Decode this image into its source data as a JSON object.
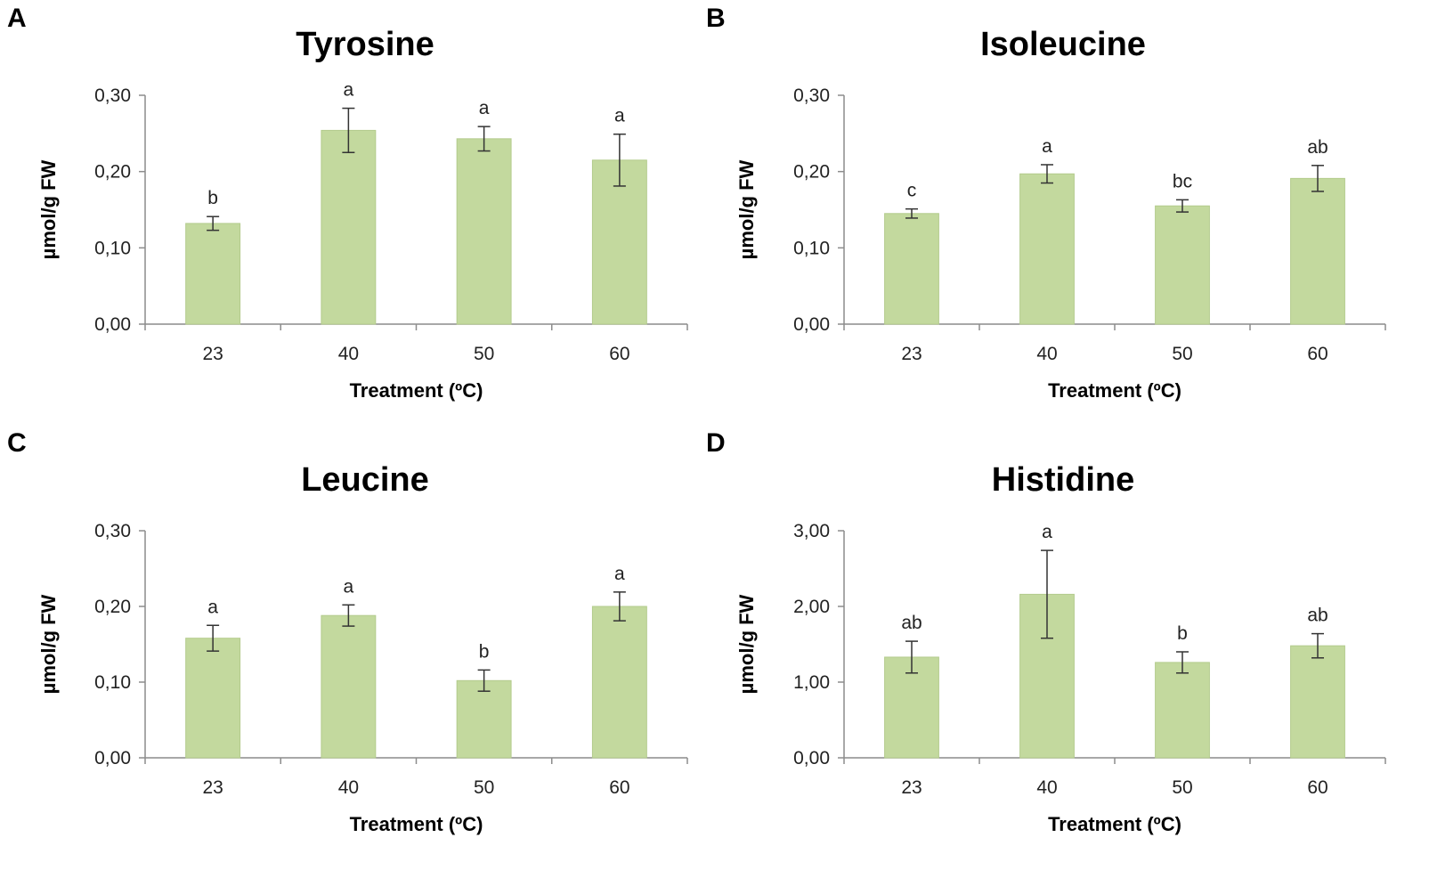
{
  "colors": {
    "bar": "#c3d99e",
    "bar_edge": "#b3cb8c",
    "axis": "#8c8c8c",
    "error": "#333333"
  },
  "chart_data": [
    {
      "panel": "A",
      "type": "bar",
      "title": "Tyrosine",
      "xlabel": "Treatment (ºC)",
      "ylabel": "µmol/g FW",
      "categories": [
        "23",
        "40",
        "50",
        "60"
      ],
      "values": [
        0.132,
        0.254,
        0.243,
        0.215
      ],
      "errors": [
        0.009,
        0.029,
        0.016,
        0.034
      ],
      "significance": [
        "b",
        "a",
        "a",
        "a"
      ],
      "ylim": [
        0,
        0.3
      ],
      "yticks": [
        0,
        0.1,
        0.2,
        0.3
      ],
      "ytick_labels": [
        "0,00",
        "0,10",
        "0,20",
        "0,30"
      ]
    },
    {
      "panel": "B",
      "type": "bar",
      "title": "Isoleucine",
      "xlabel": "Treatment (ºC)",
      "ylabel": "µmol/g FW",
      "categories": [
        "23",
        "40",
        "50",
        "60"
      ],
      "values": [
        0.145,
        0.197,
        0.155,
        0.191
      ],
      "errors": [
        0.006,
        0.012,
        0.008,
        0.017
      ],
      "significance": [
        "c",
        "a",
        "bc",
        "ab"
      ],
      "ylim": [
        0,
        0.3
      ],
      "yticks": [
        0,
        0.1,
        0.2,
        0.3
      ],
      "ytick_labels": [
        "0,00",
        "0,10",
        "0,20",
        "0,30"
      ]
    },
    {
      "panel": "C",
      "type": "bar",
      "title": "Leucine",
      "xlabel": "Treatment (ºC)",
      "ylabel": "µmol/g FW",
      "categories": [
        "23",
        "40",
        "50",
        "60"
      ],
      "values": [
        0.158,
        0.188,
        0.102,
        0.2
      ],
      "errors": [
        0.017,
        0.014,
        0.014,
        0.019
      ],
      "significance": [
        "a",
        "a",
        "b",
        "a"
      ],
      "ylim": [
        0,
        0.3
      ],
      "yticks": [
        0,
        0.1,
        0.2,
        0.3
      ],
      "ytick_labels": [
        "0,00",
        "0,10",
        "0,20",
        "0,30"
      ]
    },
    {
      "panel": "D",
      "type": "bar",
      "title": "Histidine",
      "xlabel": "Treatment (ºC)",
      "ylabel": "µmol/g FW",
      "categories": [
        "23",
        "40",
        "50",
        "60"
      ],
      "values": [
        1.33,
        2.16,
        1.26,
        1.48
      ],
      "errors": [
        0.21,
        0.58,
        0.14,
        0.16
      ],
      "significance": [
        "ab",
        "a",
        "b",
        "ab"
      ],
      "ylim": [
        0,
        3.0
      ],
      "yticks": [
        0,
        1.0,
        2.0,
        3.0
      ],
      "ytick_labels": [
        "0,00",
        "1,00",
        "2,00",
        "3,00"
      ]
    }
  ]
}
